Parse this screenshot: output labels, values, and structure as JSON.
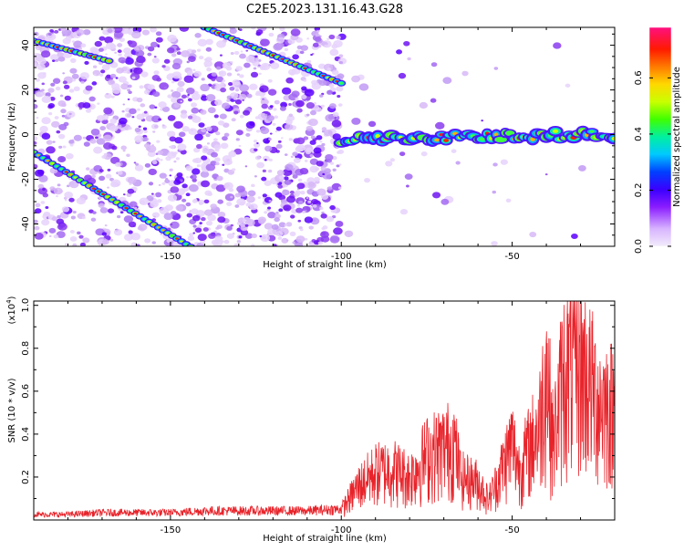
{
  "title": "C2E5.2023.131.16.43.G28",
  "chart_data": [
    {
      "type": "heatmap",
      "xlabel": "Height of straight line (km)",
      "ylabel": "Frequency (Hz)",
      "xlim": [
        -190,
        -20
      ],
      "ylim": [
        -50,
        48
      ],
      "x_ticks": [
        -150,
        -100,
        -50
      ],
      "y_ticks": [
        40,
        20,
        0,
        -20,
        -40
      ],
      "features": [
        {
          "name": "",
          "x": [
            -190,
            -140
          ],
          "y": [
            -8,
            -54
          ]
        },
        {
          "name": "",
          "x": [
            -190,
            -168
          ],
          "y": [
            42,
            33
          ]
        },
        {
          "name": "",
          "x": [
            -140,
            -100
          ],
          "y": [
            48,
            23
          ]
        },
        {
          "name": "",
          "x": [
            -100,
            -20
          ],
          "y": [
            -2,
            0
          ]
        }
      ],
      "colorbar": {
        "label": "Normalized spectral amplitude",
        "ticks": [
          0.0,
          0.2,
          0.4,
          0.6
        ],
        "range": [
          0.0,
          0.78
        ]
      }
    },
    {
      "type": "line",
      "xlabel": "Height of straight line (km)",
      "ylabel": "SNR (10 * v/v)",
      "yscale_label": "(x10",
      "yscale_exp": "4",
      "yscale_close": ")",
      "xlim": [
        -190,
        -20
      ],
      "ylim": [
        0.0,
        1.02
      ],
      "x_ticks": [
        -150,
        -100,
        -50
      ],
      "y_ticks": [
        0.2,
        0.4,
        0.6,
        0.8,
        1.0
      ],
      "color": "#e8232a",
      "series": [
        {
          "name": "",
          "x": [
            -190,
            -180,
            -170,
            -160,
            -150,
            -140,
            -130,
            -120,
            -110,
            -100,
            -95,
            -90,
            -85,
            -80,
            -75,
            -70,
            -67,
            -65,
            -60,
            -57,
            -55,
            -50,
            -48,
            -45,
            -42,
            -40,
            -38,
            -35,
            -30,
            -25,
            -20
          ],
          "y": [
            0.03,
            0.03,
            0.04,
            0.04,
            0.04,
            0.05,
            0.05,
            0.05,
            0.05,
            0.06,
            0.2,
            0.28,
            0.3,
            0.25,
            0.38,
            0.42,
            0.45,
            0.25,
            0.22,
            0.12,
            0.2,
            0.45,
            0.3,
            0.42,
            0.55,
            0.9,
            0.45,
            0.85,
            0.9,
            0.7,
            0.65
          ]
        }
      ]
    }
  ]
}
